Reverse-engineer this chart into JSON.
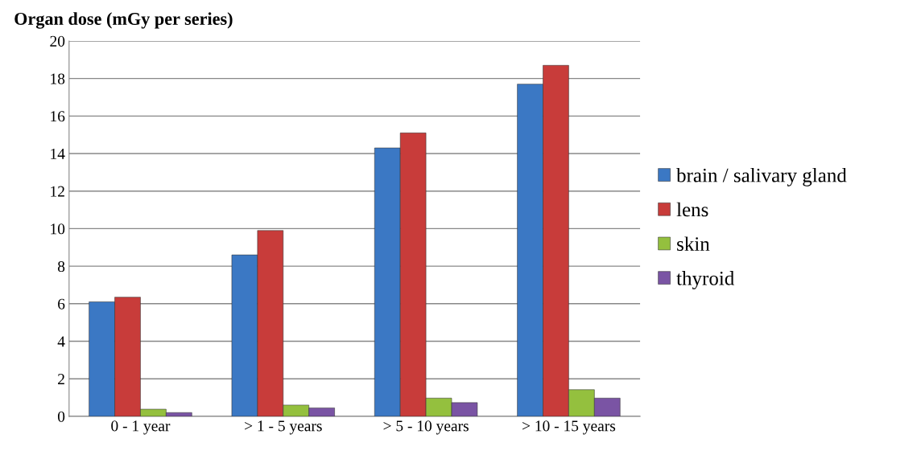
{
  "chart_data": {
    "type": "bar",
    "title": "Organ dose (mGy per series)",
    "categories": [
      "0 - 1 year",
      "> 1 - 5 years",
      "> 5 - 10 years",
      "> 10 - 15 years"
    ],
    "series": [
      {
        "name": "brain / salivary gland",
        "color": "#3b78c4",
        "values": [
          6.1,
          8.6,
          14.3,
          17.7
        ]
      },
      {
        "name": "lens",
        "color": "#c83c3a",
        "values": [
          6.35,
          9.9,
          15.1,
          18.7
        ]
      },
      {
        "name": "skin",
        "color": "#94c03e",
        "values": [
          0.38,
          0.6,
          0.97,
          1.42
        ]
      },
      {
        "name": "thyroid",
        "color": "#7a54a4",
        "values": [
          0.2,
          0.45,
          0.73,
          0.97
        ]
      }
    ],
    "ylim": [
      0,
      20
    ],
    "yticks": [
      0,
      2,
      4,
      6,
      8,
      10,
      12,
      14,
      16,
      18,
      20
    ],
    "grid": "y",
    "legend": "right"
  }
}
